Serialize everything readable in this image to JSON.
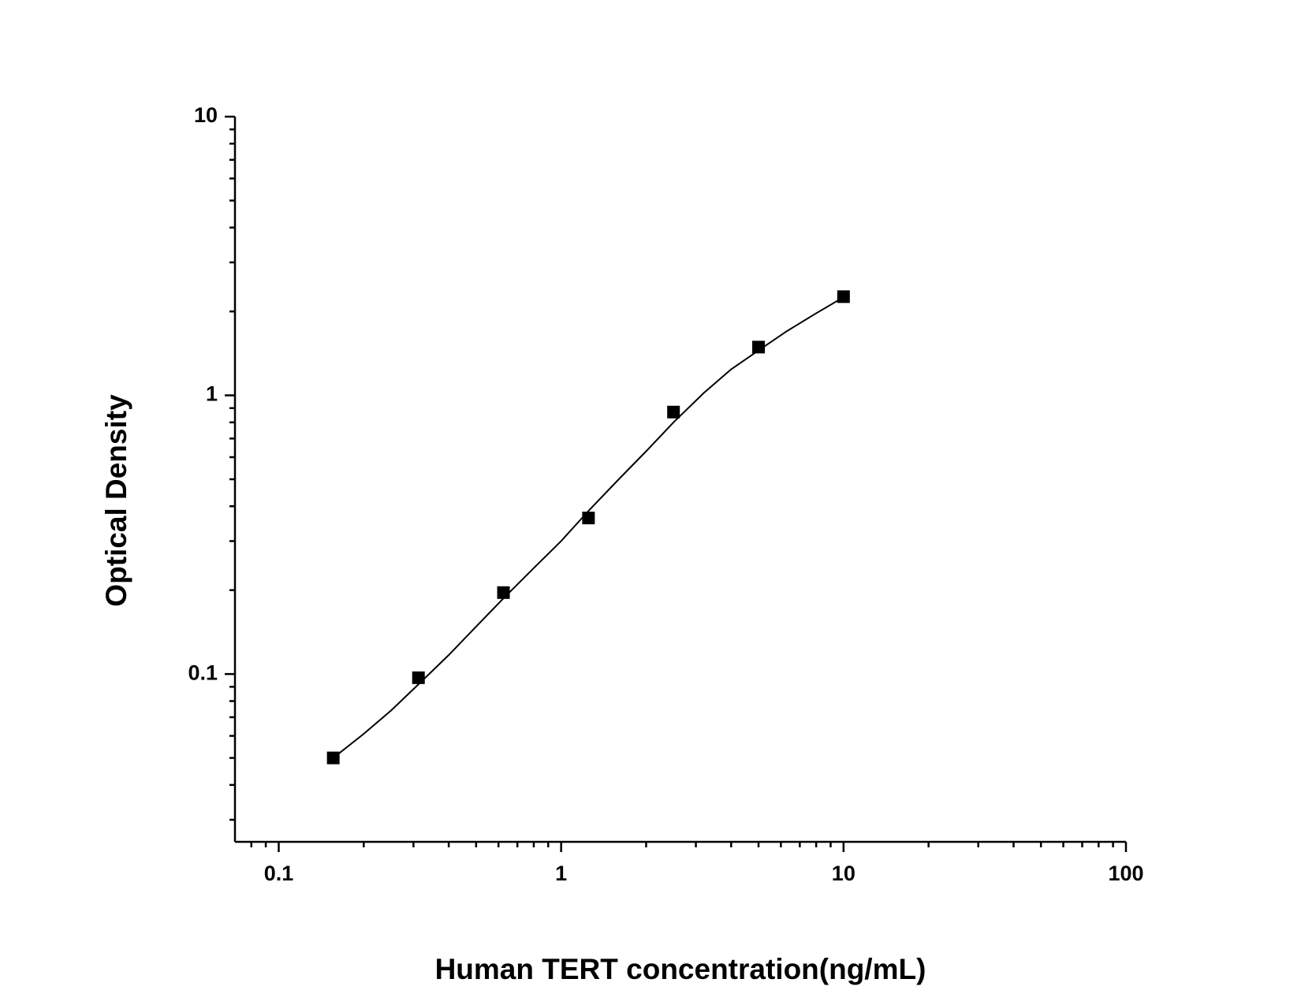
{
  "chart_data": {
    "type": "scatter",
    "x_label": "Human TERT concentration(ng/mL)",
    "y_label": "Optical Density",
    "x_scale": "log",
    "y_scale": "log",
    "x": [
      0.156,
      0.3125,
      0.625,
      1.25,
      2.5,
      5,
      10
    ],
    "values": [
      0.05,
      0.097,
      0.196,
      0.363,
      0.871,
      1.49,
      2.26
    ],
    "color": "#000000",
    "curve": {
      "x": [
        0.156,
        0.2,
        0.25,
        0.32,
        0.4,
        0.5,
        0.625,
        0.8,
        1,
        1.25,
        1.6,
        2,
        2.5,
        3.2,
        4,
        5,
        6.3,
        8,
        10
      ],
      "y": [
        0.05,
        0.061,
        0.074,
        0.094,
        0.117,
        0.148,
        0.187,
        0.24,
        0.3,
        0.385,
        0.5,
        0.63,
        0.8,
        1.02,
        1.24,
        1.45,
        1.7,
        1.97,
        2.25
      ]
    },
    "xlim": [
      0.07,
      100
    ],
    "ylim": [
      0.025,
      10
    ],
    "xticks": [
      0.1,
      1,
      10,
      100
    ],
    "yticks": [
      0.1,
      1,
      10
    ],
    "x_minor_ticks": [
      0.08,
      0.09,
      0.2,
      0.3,
      0.4,
      0.5,
      0.6,
      0.7,
      0.8,
      0.9,
      2,
      3,
      4,
      5,
      6,
      7,
      8,
      9,
      20,
      30,
      40,
      50,
      60,
      70,
      80,
      90
    ],
    "y_minor_ticks": [
      0.03,
      0.04,
      0.05,
      0.06,
      0.07,
      0.08,
      0.09,
      0.2,
      0.3,
      0.4,
      0.5,
      0.6,
      0.7,
      0.8,
      0.9,
      2,
      3,
      4,
      5,
      6,
      7,
      8,
      9
    ]
  }
}
